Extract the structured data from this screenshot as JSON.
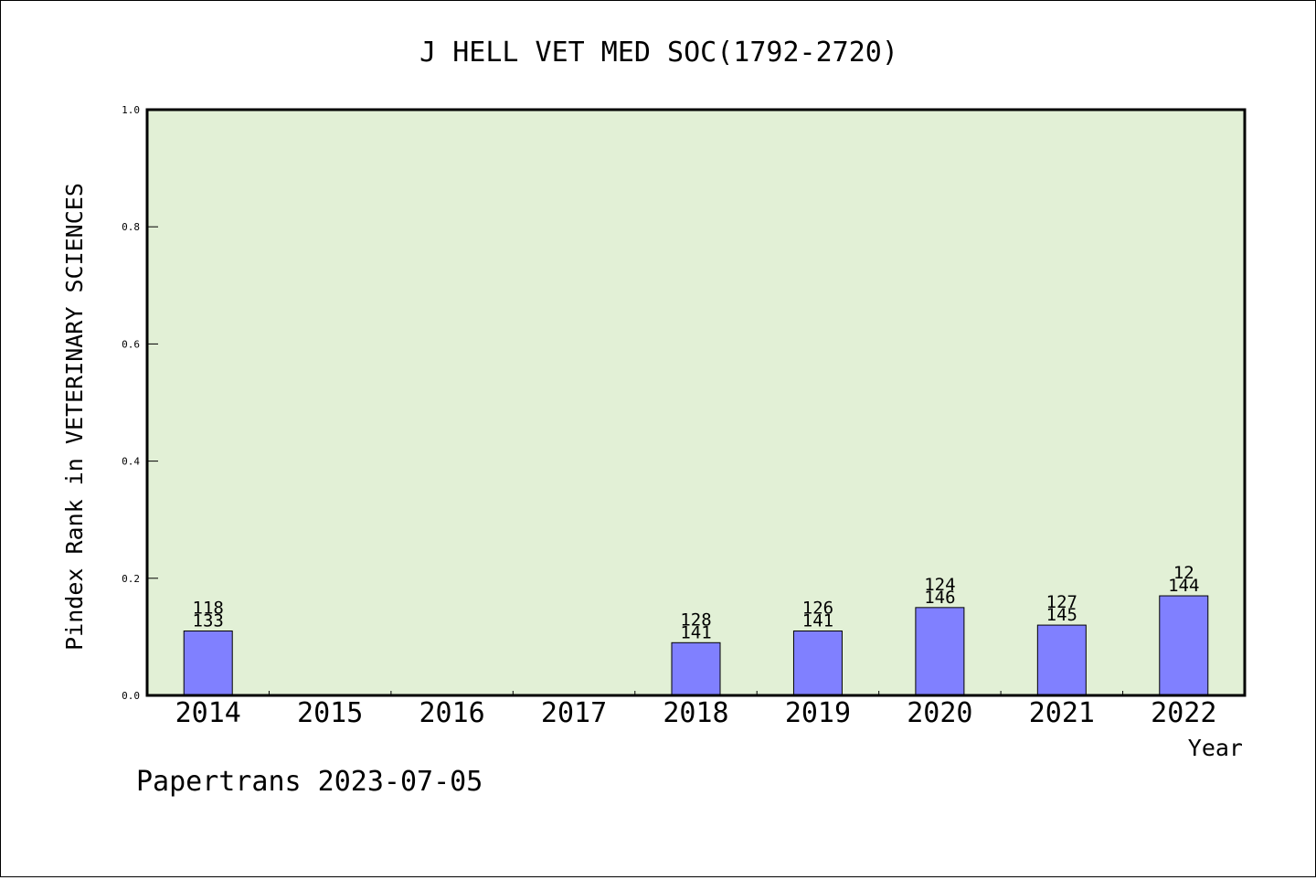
{
  "chart_data": {
    "type": "bar",
    "title": "J HELL VET MED SOC(1792-2720)",
    "ylabel": "Pindex Rank in VETERINARY SCIENCES",
    "xlabel": "Year",
    "categories": [
      "2014",
      "2015",
      "2016",
      "2017",
      "2018",
      "2019",
      "2020",
      "2021",
      "2022"
    ],
    "values": [
      0.11,
      null,
      null,
      null,
      0.09,
      0.11,
      0.15,
      0.12,
      0.17
    ],
    "labels": [
      {
        "top": "118",
        "bottom": "133"
      },
      null,
      null,
      null,
      {
        "top": "128",
        "bottom": "141"
      },
      {
        "top": "126",
        "bottom": "141"
      },
      {
        "top": "124",
        "bottom": "146"
      },
      {
        "top": "127",
        "bottom": "145"
      },
      {
        "top": "12",
        "bottom": "144"
      }
    ],
    "yticks": [
      "0.0",
      "0.2",
      "0.4",
      "0.6",
      "0.8",
      "1.0"
    ],
    "ylim": [
      0,
      1
    ],
    "grid": false,
    "colors": {
      "plot_background": "#e2f0d6",
      "bar_fill": "#8080ff",
      "bar_stroke": "#000000"
    }
  },
  "footer": {
    "credit": "Papertrans 2023-07-05"
  }
}
